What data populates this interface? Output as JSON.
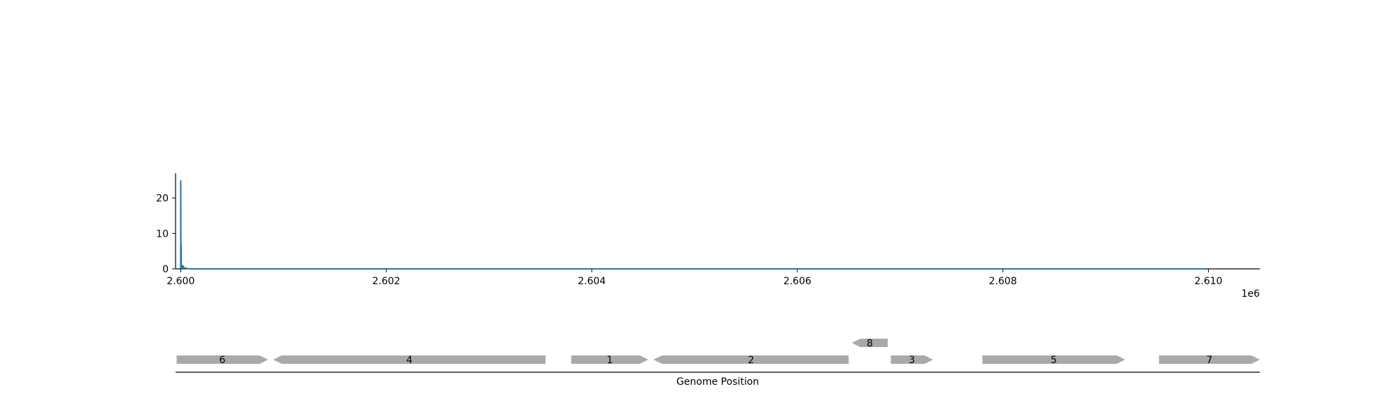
{
  "chart_data": [
    {
      "type": "line",
      "title": "",
      "xlabel": "",
      "ylabel": "",
      "x_offset_label": "1e6",
      "xlim": [
        2599950,
        2610500
      ],
      "ylim": [
        0,
        27
      ],
      "xticks": [
        2600000,
        2602000,
        2604000,
        2606000,
        2608000,
        2610000
      ],
      "xtick_labels": [
        "2.600",
        "2.602",
        "2.604",
        "2.606",
        "2.608",
        "2.610"
      ],
      "yticks": [
        0,
        10,
        20
      ],
      "ytick_labels": [
        "0",
        "10",
        "20"
      ],
      "grid": false,
      "color": "#1f77b4",
      "series": [
        {
          "x": [
            2600000,
            2600000,
            2600002,
            2600004,
            2600006,
            2600008,
            2600010,
            2600012,
            2600014,
            2600016,
            2600020,
            2600030,
            2600040,
            2600060,
            2600100,
            2610000
          ],
          "values": [
            0,
            25,
            4,
            7,
            1,
            0.3,
            1,
            0.2,
            0.6,
            0.2,
            1,
            0.1,
            0.3,
            0.1,
            0,
            0
          ]
        }
      ]
    },
    {
      "type": "gene-track",
      "xlabel": "Genome Position",
      "xlim": [
        2599950,
        2610500
      ],
      "color": "#a9a9a9",
      "genes": [
        {
          "label": "6",
          "start": 2599960,
          "end": 2600850,
          "strand": "+",
          "row": 0
        },
        {
          "label": "4",
          "start": 2600900,
          "end": 2603550,
          "strand": "-",
          "row": 0
        },
        {
          "label": "1",
          "start": 2603800,
          "end": 2604550,
          "strand": "+",
          "row": 0
        },
        {
          "label": "2",
          "start": 2604600,
          "end": 2606500,
          "strand": "-",
          "row": 0
        },
        {
          "label": "8",
          "start": 2606530,
          "end": 2606880,
          "strand": "-",
          "row": 1
        },
        {
          "label": "3",
          "start": 2606910,
          "end": 2607320,
          "strand": "+",
          "row": 0
        },
        {
          "label": "5",
          "start": 2607800,
          "end": 2609190,
          "strand": "+",
          "row": 0
        },
        {
          "label": "7",
          "start": 2609520,
          "end": 2610500,
          "strand": "+",
          "row": 0
        }
      ]
    }
  ]
}
